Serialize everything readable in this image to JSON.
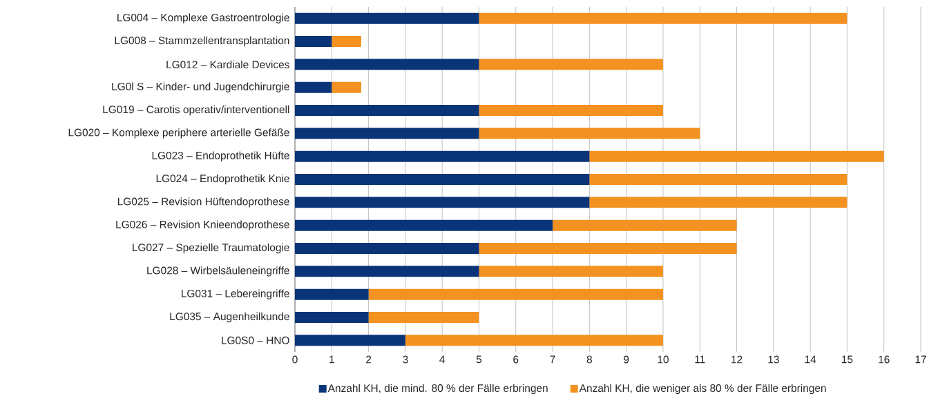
{
  "chart_data": {
    "type": "bar",
    "orientation": "horizontal",
    "stacked": true,
    "categories": [
      "LG004 – Komplexe Gastroentrologie",
      "LG008 – Stammzellentransplantation",
      "LG012 – Kardiale Devices",
      "LG0l S – Kinder- und Jugendchirurgie",
      "LG019 – Carotis operativ/interventionell",
      "LG020 – Komplexe periphere arterielle Gefäße",
      "LG023 – Endoprothetik Hüfte",
      "LG024 – Endoprothetik Knie",
      "LG025 – Revision Hüftendoprothese",
      "LG026 – Revision Knieendoprothese",
      "LG027 – Spezielle Traumatologie",
      "LG028 – Wirbelsäuleneingriffe",
      "LG031 – Lebereingriffe",
      "LG035 – Augenheilkunde",
      "LG0S0 – HNO"
    ],
    "series": [
      {
        "name": "Anzahl KH, die mind. 80 % der Fälle erbringen",
        "color": "#0a3478",
        "values": [
          5,
          1,
          5,
          1,
          5,
          5,
          8,
          8,
          8,
          7,
          5,
          5,
          2,
          2,
          3
        ]
      },
      {
        "name": "Anzahl KH, die weniger als 80 % der Fälle erbringen",
        "color": "#f39221",
        "values": [
          10,
          0.8,
          5,
          0.8,
          5,
          6,
          8,
          7,
          7,
          5,
          7,
          5,
          8,
          3,
          7
        ]
      }
    ],
    "xlim": [
      0,
      17
    ],
    "xticks": [
      0,
      1,
      2,
      3,
      4,
      5,
      6,
      7,
      8,
      9,
      10,
      11,
      12,
      13,
      14,
      15,
      16,
      17
    ],
    "grid": "x",
    "legend": "bottom"
  }
}
